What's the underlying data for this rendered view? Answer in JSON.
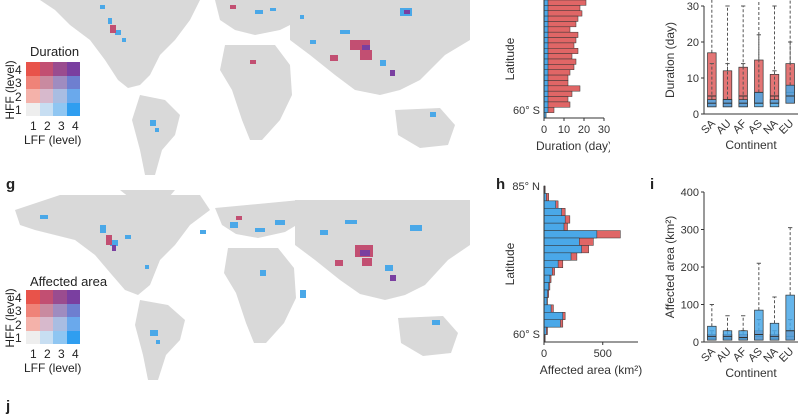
{
  "panels": {
    "g": "g",
    "h": "h",
    "i": "i",
    "j": "j"
  },
  "legend_top": {
    "title": "Duration",
    "y_label": "HFF (level)",
    "x_label": "LFF (level)",
    "levels": [
      "1",
      "2",
      "3",
      "4"
    ]
  },
  "legend_bottom": {
    "title": "Affected area",
    "y_label": "HFF (level)",
    "x_label": "LFF (level)",
    "levels": [
      "1",
      "2",
      "3",
      "4"
    ]
  },
  "colors": {
    "land": "#d9d9d9",
    "hff": "#e06666",
    "lff": "#4aa8e8",
    "both": "#7b3f8f",
    "grid": [
      [
        "#e8534a",
        "#c24f72",
        "#9a4c8f",
        "#7a3fa0"
      ],
      [
        "#ef8378",
        "#c98aa0",
        "#9f8cc0",
        "#6e7fd0"
      ],
      [
        "#f4b2aa",
        "#d7b9cc",
        "#a9bde2",
        "#6aa9ec"
      ],
      [
        "#eeeeee",
        "#c7def2",
        "#8fc6f2",
        "#2f9ef0"
      ]
    ]
  },
  "chart_data": [
    {
      "type": "bar",
      "id": "top-lat-hist",
      "orientation": "horizontal",
      "xlabel": "Duration (day)",
      "ylabel": "Latitude",
      "xlim": [
        0,
        30
      ],
      "xticks": [
        "0",
        "10",
        "20",
        "30"
      ],
      "ylim_label_bottom": "60° S",
      "series": [
        {
          "values": [
            21,
            18,
            19,
            17,
            16,
            13,
            17,
            16,
            15,
            17,
            14,
            16,
            15,
            13,
            12,
            12,
            18,
            14,
            12,
            13,
            5,
            1
          ]
        },
        {
          "values": [
            2,
            2,
            2,
            2,
            2,
            2,
            2,
            2,
            2,
            2,
            2,
            2,
            2,
            2,
            2,
            2,
            2,
            2,
            2,
            2,
            2,
            1
          ]
        }
      ]
    },
    {
      "type": "box",
      "id": "top-continent-box",
      "xlabel": "Continent",
      "ylabel": "Duration (day)",
      "ylim": [
        0,
        30
      ],
      "yticks": [
        "0",
        "10",
        "20",
        "30"
      ],
      "categories": [
        "SA",
        "AU",
        "AF",
        "AS",
        "NA",
        "EU"
      ],
      "series": [
        {
          "boxes": [
            [
              2,
              5,
              17,
              32
            ],
            [
              2,
              4,
              12,
              30
            ],
            [
              2,
              5,
              13,
              30
            ],
            [
              3,
              6,
              15,
              32
            ],
            [
              3,
              5,
              11,
              30
            ],
            [
              3,
              6,
              14,
              32
            ]
          ]
        },
        {
          "boxes": [
            [
              2,
              3,
              4,
              14
            ],
            [
              2,
              3,
              4,
              14
            ],
            [
              2,
              3,
              4,
              14
            ],
            [
              2,
              3,
              6,
              22
            ],
            [
              2,
              3,
              4,
              12
            ],
            [
              3,
              5,
              8,
              20
            ]
          ]
        }
      ]
    },
    {
      "type": "bar",
      "id": "bottom-lat-hist",
      "orientation": "horizontal",
      "xlabel": "Affected area (km²)",
      "ylabel": "Latitude",
      "xlim": [
        0,
        800
      ],
      "xticks": [
        "0",
        "500"
      ],
      "ylim_label_top": "85° N",
      "ylim_label_bottom": "60° S",
      "series": [
        {
          "values": [
            10,
            40,
            120,
            180,
            220,
            200,
            650,
            420,
            380,
            280,
            160,
            90,
            60,
            50,
            40,
            30,
            80,
            180,
            160,
            30,
            10
          ]
        },
        {
          "values": [
            5,
            20,
            100,
            150,
            180,
            170,
            450,
            300,
            320,
            230,
            120,
            70,
            50,
            40,
            30,
            25,
            60,
            160,
            140,
            20,
            5
          ]
        }
      ]
    },
    {
      "type": "box",
      "id": "bottom-continent-box",
      "xlabel": "Continent",
      "ylabel": "Affected area (km²)",
      "ylim": [
        0,
        400
      ],
      "yticks": [
        "0",
        "100",
        "200",
        "300",
        "400"
      ],
      "categories": [
        "SA",
        "AU",
        "AF",
        "AS",
        "NA",
        "EU"
      ],
      "series": [
        {
          "boxes": [
            [
              5,
              10,
              20,
              30
            ],
            [
              5,
              10,
              20,
              30
            ],
            [
              5,
              10,
              20,
              30
            ],
            [
              5,
              15,
              30,
              60
            ],
            [
              5,
              10,
              20,
              30
            ],
            [
              5,
              15,
              30,
              60
            ]
          ]
        },
        {
          "boxes": [
            [
              5,
              15,
              42,
              100
            ],
            [
              5,
              15,
              30,
              70
            ],
            [
              5,
              12,
              30,
              70
            ],
            [
              5,
              20,
              85,
              210
            ],
            [
              5,
              15,
              50,
              120
            ],
            [
              5,
              30,
              125,
              305
            ]
          ]
        }
      ]
    }
  ]
}
